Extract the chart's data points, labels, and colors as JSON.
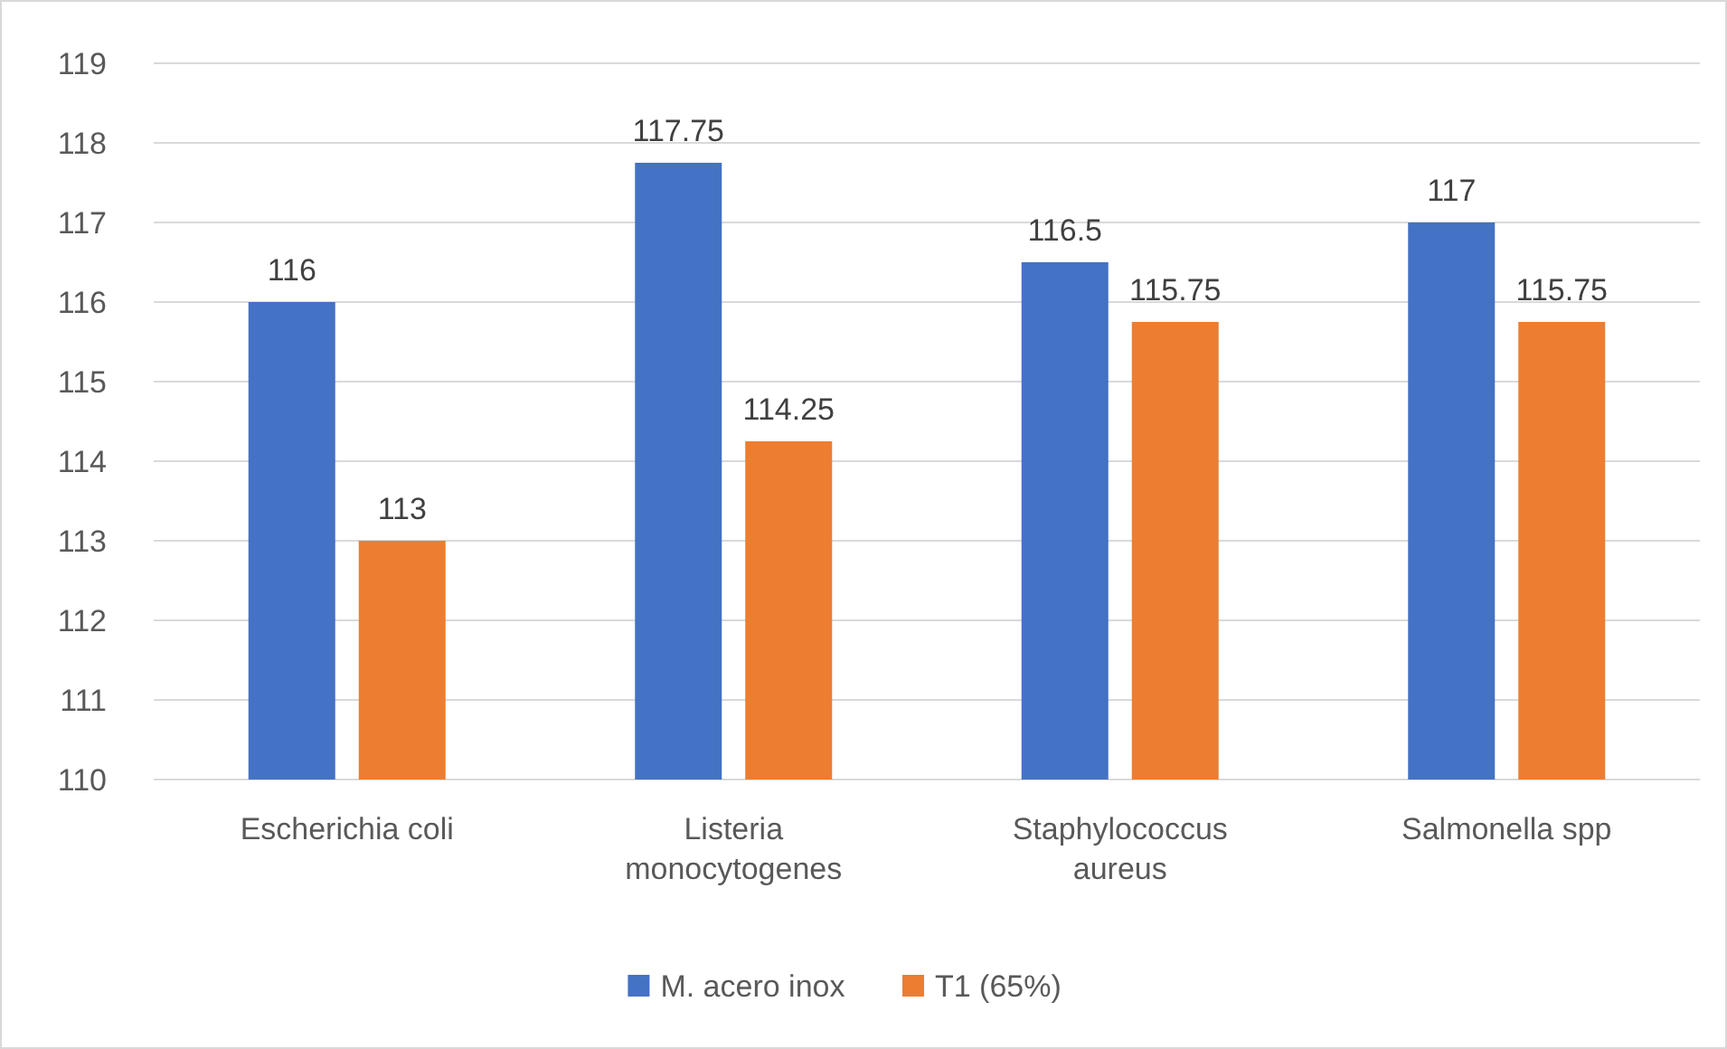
{
  "chart_data": {
    "type": "bar",
    "categories": [
      "Escherichia coli",
      "Listeria monocytogenes",
      "Staphylococcus aureus",
      "Salmonella spp"
    ],
    "series": [
      {
        "name": "M. acero inox",
        "color": "#4472c4",
        "values": [
          116,
          117.75,
          116.5,
          117
        ]
      },
      {
        "name": "T1 (65%)",
        "color": "#ed7d31",
        "values": [
          113,
          114.25,
          115.75,
          115.75
        ]
      }
    ],
    "ylim": [
      110,
      119
    ],
    "yticks": [
      110,
      111,
      112,
      113,
      114,
      115,
      116,
      117,
      118,
      119
    ],
    "grid": "y",
    "data_labels": true,
    "legend": "bottom"
  }
}
